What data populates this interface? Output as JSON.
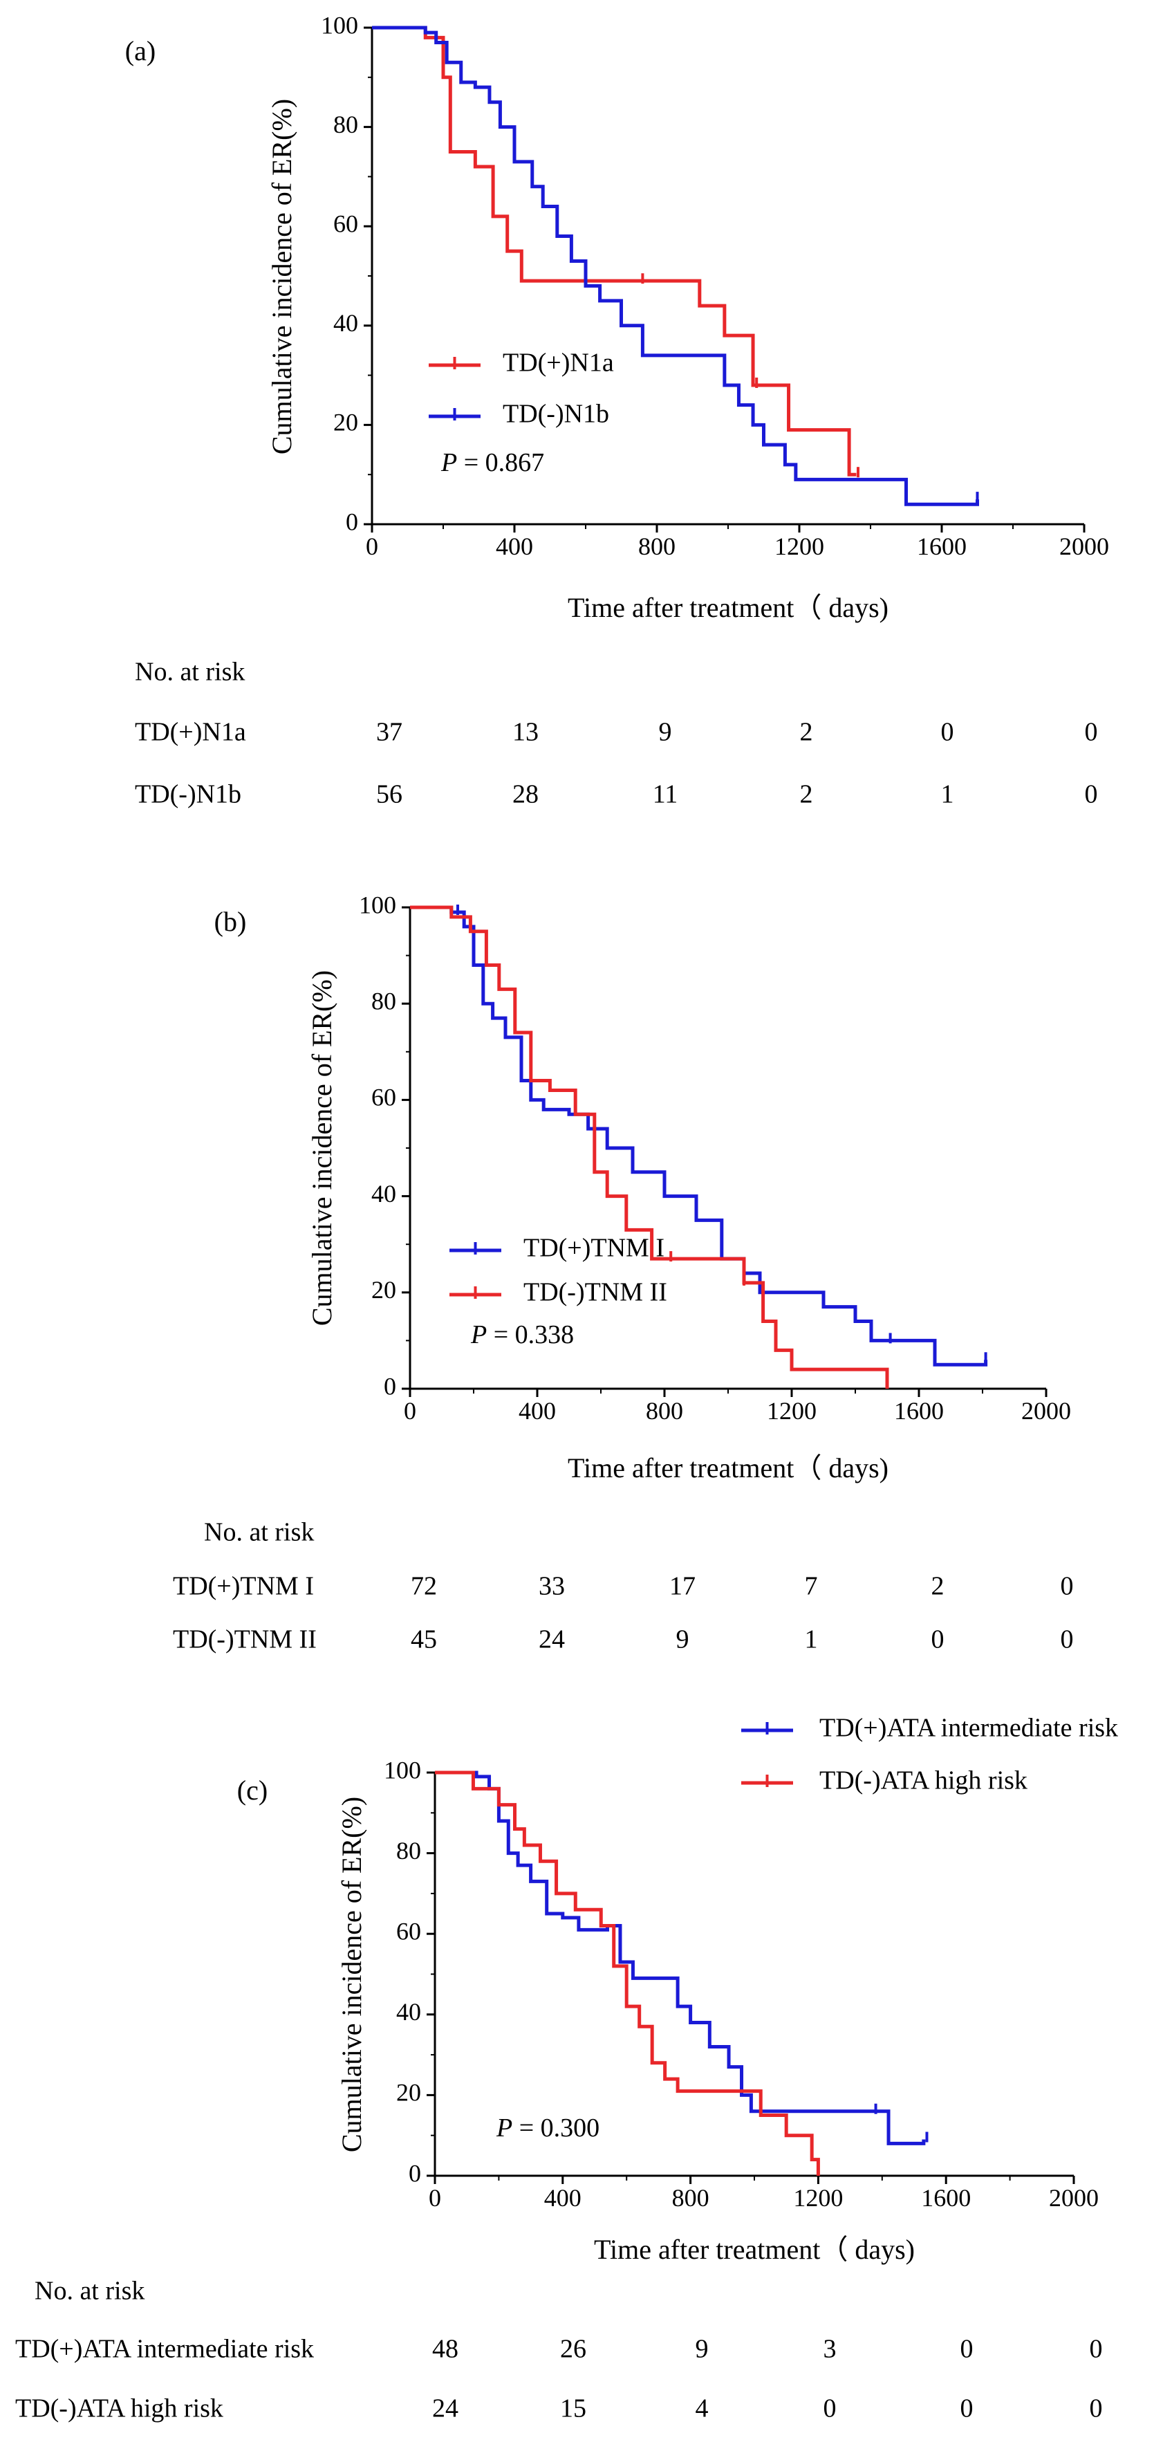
{
  "chart_data": [
    {
      "type": "line",
      "panel_label": "(a)",
      "ylabel": "Cumulative incidence of ER(%)",
      "xlabel": "Time after treatment（ days)",
      "xlim": [
        0,
        2000
      ],
      "ylim": [
        0,
        100
      ],
      "xticks": [
        "0",
        "400",
        "800",
        "1200",
        "1600",
        "2000"
      ],
      "yticks": [
        "0",
        "20",
        "40",
        "60",
        "80",
        "100"
      ],
      "p_prefix": "P",
      "p_value": " = 0.867",
      "legend_position": "middle-left",
      "series": [
        {
          "name": "TD(+)N1a",
          "color": "#e8272a",
          "x": [
            0,
            150,
            200,
            220,
            290,
            340,
            380,
            420,
            620,
            920,
            990,
            1070,
            1170,
            1340,
            1360
          ],
          "y": [
            100,
            98,
            90,
            75,
            72,
            62,
            55,
            49,
            49,
            44,
            38,
            28,
            19,
            10,
            10
          ],
          "censor_x": [
            1080,
            1365,
            760
          ]
        },
        {
          "name": "TD(-)N1b",
          "color": "#1a1ad6",
          "x": [
            0,
            150,
            180,
            210,
            250,
            290,
            330,
            360,
            400,
            450,
            480,
            520,
            560,
            600,
            640,
            700,
            760,
            920,
            990,
            1030,
            1070,
            1100,
            1160,
            1190,
            1270,
            1500,
            1690,
            1700
          ],
          "y": [
            100,
            99,
            97,
            93,
            89,
            88,
            85,
            80,
            73,
            68,
            64,
            58,
            53,
            48,
            45,
            40,
            34,
            34,
            28,
            24,
            20,
            16,
            12,
            9,
            9,
            4,
            4,
            5
          ],
          "censor_x": [
            1700
          ]
        }
      ],
      "risk_table": {
        "header": "No. at risk",
        "rows": [
          {
            "label": "TD(+)N1a",
            "values": [
              "37",
              "13",
              "9",
              "2",
              "0",
              "0"
            ]
          },
          {
            "label": "TD(-)N1b",
            "values": [
              "56",
              "28",
              "11",
              "2",
              "1",
              "0"
            ]
          }
        ]
      }
    },
    {
      "type": "line",
      "panel_label": "(b)",
      "ylabel": "Cumulative incidence of ER(%)",
      "xlabel": "Time after treatment（ days)",
      "xlim": [
        0,
        2000
      ],
      "ylim": [
        0,
        100
      ],
      "xticks": [
        "0",
        "400",
        "800",
        "1200",
        "1600",
        "2000"
      ],
      "yticks": [
        "0",
        "20",
        "40",
        "60",
        "80",
        "100"
      ],
      "p_prefix": "P",
      "p_value": " = 0.338",
      "legend_position": "middle-left",
      "series": [
        {
          "name": "TD(+)TNM I",
          "color": "#1a1ad6",
          "x": [
            0,
            130,
            170,
            200,
            230,
            260,
            300,
            350,
            380,
            420,
            500,
            560,
            620,
            700,
            800,
            900,
            980,
            1050,
            1100,
            1200,
            1300,
            1400,
            1450,
            1650,
            1800,
            1810
          ],
          "y": [
            100,
            99,
            96,
            88,
            80,
            77,
            73,
            64,
            60,
            58,
            57,
            54,
            50,
            45,
            40,
            35,
            27,
            24,
            20,
            20,
            17,
            14,
            10,
            5,
            5,
            6
          ],
          "censor_x": [
            150,
            1510,
            1810
          ]
        },
        {
          "name": "TD(-)TNM II",
          "color": "#e8272a",
          "x": [
            0,
            130,
            190,
            240,
            280,
            330,
            380,
            440,
            520,
            580,
            620,
            680,
            760,
            850,
            960,
            1050,
            1110,
            1150,
            1200,
            1500
          ],
          "y": [
            100,
            98,
            95,
            88,
            83,
            74,
            64,
            62,
            57,
            45,
            40,
            33,
            27,
            27,
            27,
            22,
            14,
            8,
            4,
            0
          ],
          "censor_x": [
            820,
            1050
          ]
        }
      ],
      "risk_table": {
        "header": "No. at risk",
        "rows": [
          {
            "label": "TD(+)TNM I",
            "values": [
              "72",
              "33",
              "17",
              "7",
              "2",
              "0"
            ]
          },
          {
            "label": "TD(-)TNM II",
            "values": [
              "45",
              "24",
              "9",
              "1",
              "0",
              "0"
            ]
          }
        ]
      }
    },
    {
      "type": "line",
      "panel_label": "(c)",
      "ylabel": "Cumulative incidence of ER(%)",
      "xlabel": "Time after treatment（ days)",
      "xlim": [
        0,
        2000
      ],
      "ylim": [
        0,
        100
      ],
      "xticks": [
        "0",
        "400",
        "800",
        "1200",
        "1600",
        "2000"
      ],
      "yticks": [
        "0",
        "20",
        "40",
        "60",
        "80",
        "100"
      ],
      "p_prefix": "P",
      "p_value": " = 0.300",
      "legend_position": "top-right",
      "series": [
        {
          "name": "TD(+)ATA intermediate risk",
          "color": "#1a1ad6",
          "x": [
            0,
            130,
            170,
            200,
            230,
            260,
            300,
            350,
            400,
            450,
            540,
            580,
            620,
            700,
            760,
            800,
            860,
            920,
            960,
            990,
            1390,
            1420,
            1530
          ],
          "y": [
            100,
            99,
            96,
            88,
            80,
            77,
            73,
            65,
            64,
            61,
            62,
            53,
            49,
            49,
            42,
            38,
            32,
            27,
            20,
            16,
            16,
            8,
            9
          ],
          "censor_x": [
            1380,
            1540
          ]
        },
        {
          "name": "TD(-)ATA high risk",
          "color": "#e8272a",
          "x": [
            0,
            120,
            200,
            250,
            280,
            330,
            380,
            440,
            520,
            560,
            600,
            640,
            680,
            720,
            760,
            960,
            1020,
            1100,
            1180,
            1200
          ],
          "y": [
            100,
            96,
            92,
            86,
            82,
            78,
            70,
            66,
            62,
            52,
            42,
            37,
            28,
            24,
            21,
            21,
            15,
            10,
            4,
            0
          ],
          "censor_x": []
        }
      ],
      "risk_table": {
        "header": "No. at risk",
        "rows": [
          {
            "label": "TD(+)ATA intermediate risk",
            "values": [
              "48",
              "26",
              "9",
              "3",
              "0",
              "0"
            ]
          },
          {
            "label": "TD(-)ATA high risk",
            "values": [
              "24",
              "15",
              "4",
              "0",
              "0",
              "0"
            ]
          }
        ]
      }
    }
  ]
}
